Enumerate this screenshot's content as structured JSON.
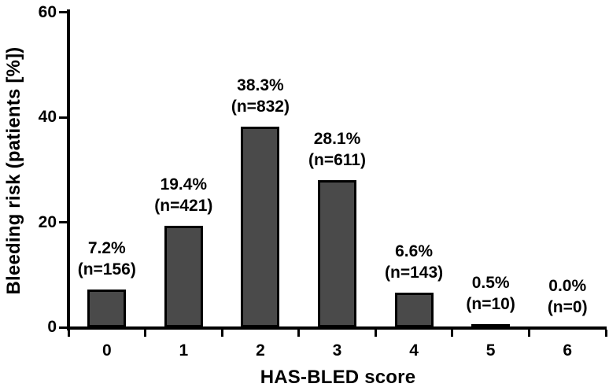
{
  "figure": {
    "background": "#ffffff",
    "bar_fill": "#4a4a4a",
    "bar_border": "#000000",
    "axis_color": "#000000",
    "text_color": "#000000"
  },
  "chart_data": {
    "type": "bar",
    "title": "",
    "xlabel": "HAS-BLED score",
    "ylabel": "Bleeding risk (patients [%])",
    "categories": [
      "0",
      "1",
      "2",
      "3",
      "4",
      "5",
      "6"
    ],
    "values": [
      7.2,
      19.4,
      38.3,
      28.1,
      6.6,
      0.5,
      0.0
    ],
    "counts": [
      156,
      421,
      832,
      611,
      143,
      10,
      0
    ],
    "percent_labels": [
      "7.2%",
      "19.4%",
      "38.3%",
      "28.1%",
      "6.6%",
      "0.5%",
      "0.0%"
    ],
    "n_labels": [
      "(n=156)",
      "(n=421)",
      "(n=832)",
      "(n=611)",
      "(n=143)",
      "(n=10)",
      "(n=0)"
    ],
    "yticks": [
      "0",
      "20",
      "40",
      "60"
    ],
    "ytick_values": [
      0,
      20,
      40,
      60
    ],
    "ylim": [
      0,
      60
    ],
    "grid": false,
    "legend": null
  }
}
